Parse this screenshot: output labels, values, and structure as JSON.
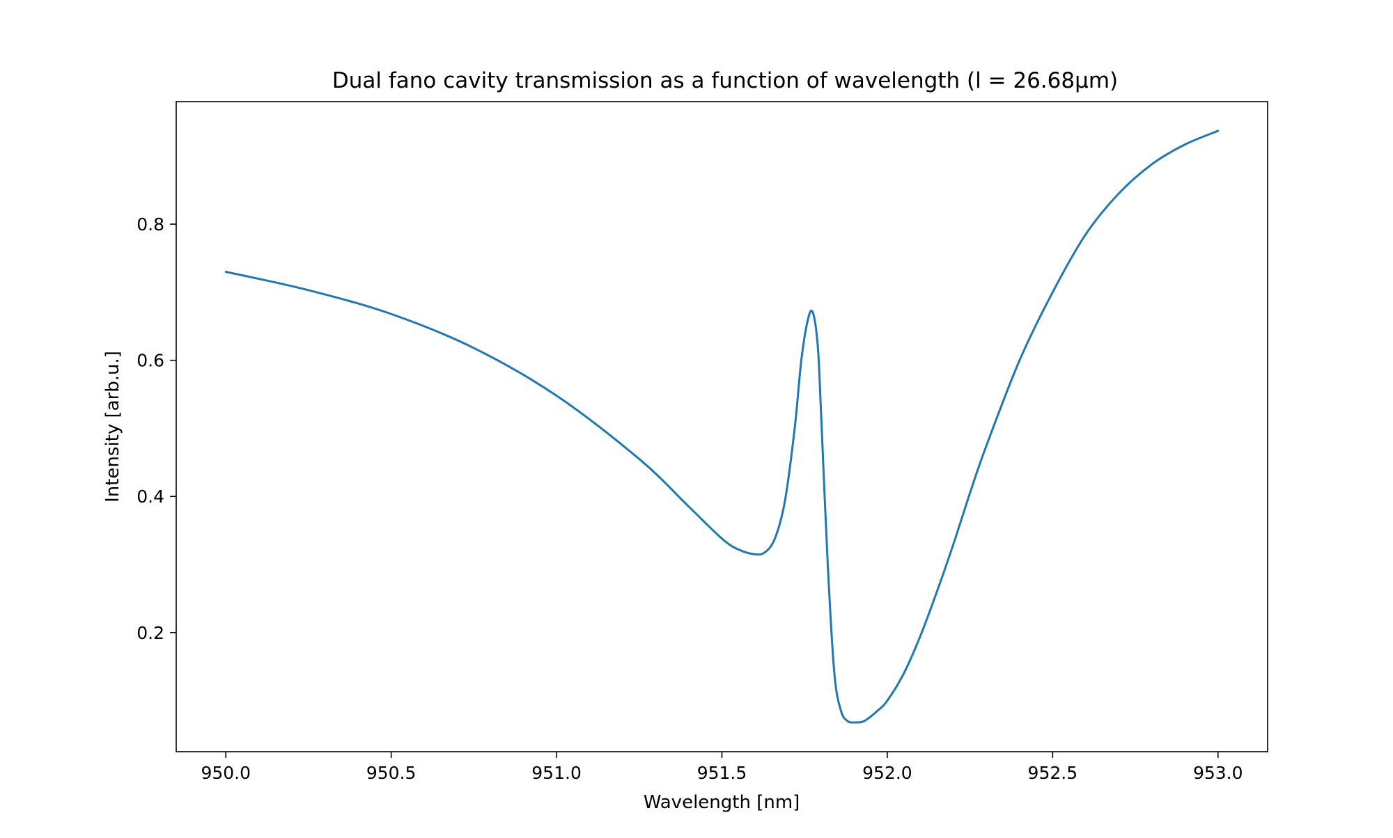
{
  "chart_data": {
    "type": "line",
    "title": "Dual fano cavity transmission as a function of wavelength (l = 26.68µm)",
    "xlabel": "Wavelength [nm]",
    "ylabel": "Intensity [arb.u.]",
    "xlim": [
      949.85,
      953.15
    ],
    "ylim": [
      0.025,
      0.98
    ],
    "xticks": [
      950.0,
      950.5,
      951.0,
      951.5,
      952.0,
      952.5,
      953.0
    ],
    "xtick_labels": [
      "950.0",
      "950.5",
      "951.0",
      "951.5",
      "952.0",
      "952.5",
      "953.0"
    ],
    "yticks": [
      0.2,
      0.4,
      0.6,
      0.8
    ],
    "ytick_labels": [
      "0.2",
      "0.4",
      "0.6",
      "0.8"
    ],
    "grid": false,
    "legend": "none",
    "series": [
      {
        "color": "#1f77b4",
        "x": [
          950.0,
          950.25,
          950.5,
          950.75,
          951.0,
          951.25,
          951.4,
          951.5,
          951.55,
          951.6,
          951.63,
          951.66,
          951.69,
          951.72,
          951.74,
          951.76,
          951.775,
          951.79,
          951.8,
          951.82,
          951.84,
          951.86,
          951.88,
          951.9,
          951.93,
          951.97,
          952.0,
          952.05,
          952.1,
          952.15,
          952.2,
          952.25,
          952.3,
          952.4,
          952.5,
          952.6,
          952.7,
          952.8,
          952.9,
          953.0
        ],
        "y": [
          0.73,
          0.703,
          0.668,
          0.618,
          0.548,
          0.455,
          0.385,
          0.338,
          0.322,
          0.315,
          0.318,
          0.338,
          0.392,
          0.5,
          0.6,
          0.66,
          0.67,
          0.62,
          0.52,
          0.3,
          0.14,
          0.085,
          0.07,
          0.068,
          0.07,
          0.085,
          0.1,
          0.14,
          0.195,
          0.26,
          0.33,
          0.405,
          0.475,
          0.6,
          0.7,
          0.785,
          0.845,
          0.888,
          0.917,
          0.937
        ]
      }
    ]
  }
}
